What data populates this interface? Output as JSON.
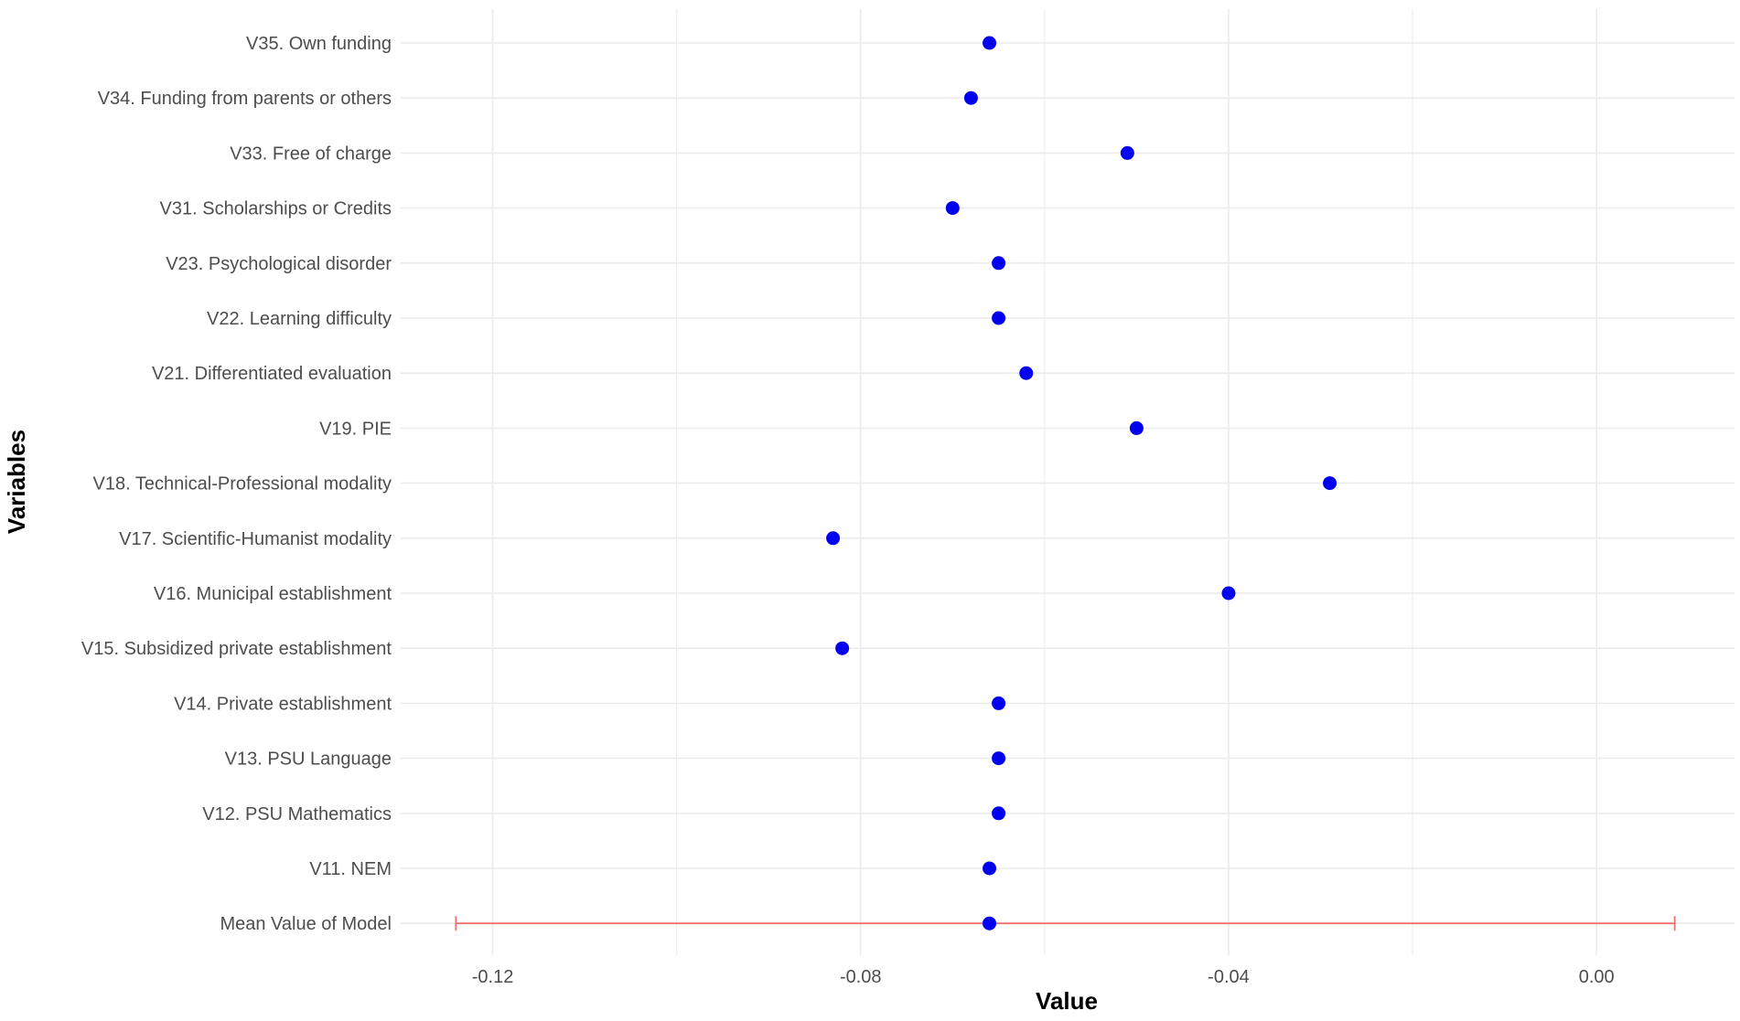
{
  "chart_data": {
    "type": "scatter",
    "xlabel": "Value",
    "ylabel": "Variables",
    "xlim": [
      -0.13,
      0.015
    ],
    "xticks": [
      -0.12,
      -0.08,
      -0.04,
      0.0
    ],
    "xtick_labels": [
      "-0.12",
      "-0.08",
      "-0.04",
      "0.00"
    ],
    "grid": true,
    "point_color": "#0000ee",
    "errorbar_color": "#f07070",
    "gridline_color": "#ebebeb",
    "categories": [
      "V35. Own funding",
      "V34. Funding from parents or others",
      "V33. Free of charge",
      "V31. Scholarships or Credits",
      "V23. Psychological disorder",
      "V22. Learning difficulty",
      "V21. Differentiated evaluation",
      "V19. PIE",
      "V18. Technical-Professional modality",
      "V17. Scientific-Humanist modality",
      "V16. Municipal establishment",
      "V15. Subsidized private establishment",
      "V14. Private establishment",
      "V13. PSU Language",
      "V12. PSU Mathematics",
      "V11. NEM",
      "Mean Value of Model"
    ],
    "values": [
      -0.066,
      -0.068,
      -0.051,
      -0.07,
      -0.065,
      -0.065,
      -0.062,
      -0.05,
      -0.029,
      -0.083,
      -0.04,
      -0.082,
      -0.065,
      -0.065,
      -0.065,
      -0.066,
      -0.066
    ],
    "errorbar": {
      "category": "Mean Value of Model",
      "low": -0.124,
      "high": 0.0085
    }
  }
}
